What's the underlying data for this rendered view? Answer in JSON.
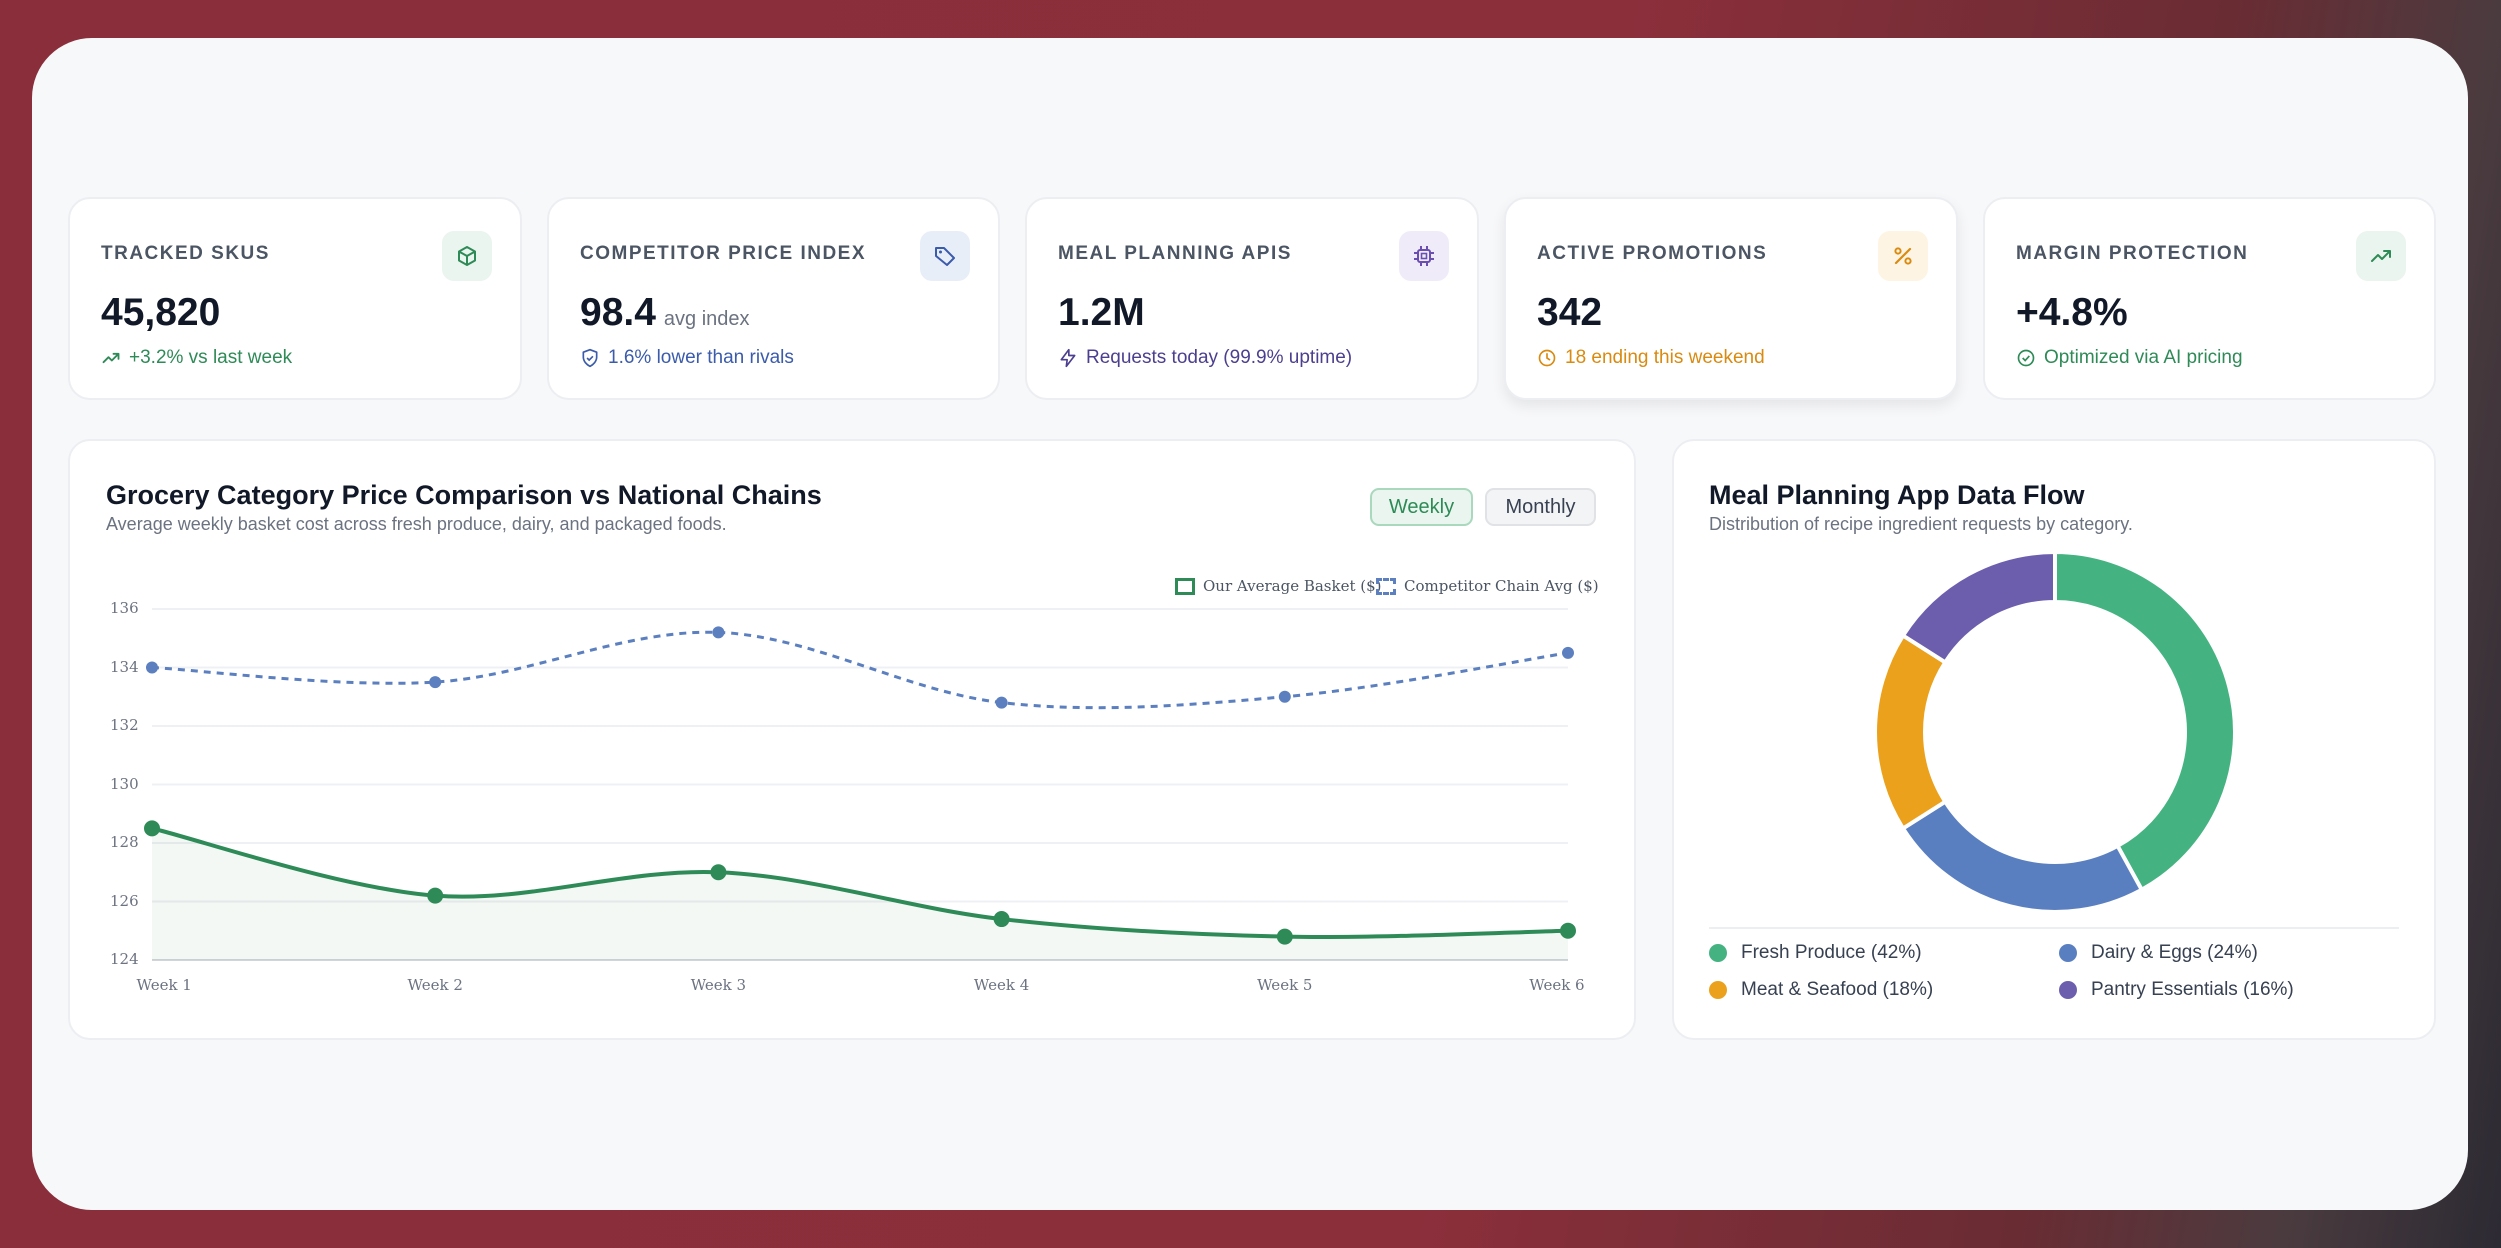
{
  "kpis": [
    {
      "label": "TRACKED SKUS",
      "value": "45,820",
      "suffix": "",
      "sub": "+3.2% vs last week",
      "sub_color": "#2e8b57",
      "icon": "box-icon",
      "badge_bg": "#e9f5ee",
      "icon_color": "#2e8b57"
    },
    {
      "label": "COMPETITOR PRICE INDEX",
      "value": "98.4",
      "suffix": "avg index",
      "sub": "1.6% lower than rivals",
      "sub_color": "#3b5bab",
      "icon": "tag-icon",
      "badge_bg": "#e8eef8",
      "icon_color": "#3b5bab"
    },
    {
      "label": "MEAL PLANNING APIS",
      "value": "1.2M",
      "suffix": "",
      "sub": "Requests today (99.9% uptime)",
      "sub_color": "#4c3f8f",
      "icon": "chip-icon",
      "badge_bg": "#efebf8",
      "icon_color": "#6a4fb0"
    },
    {
      "label": "ACTIVE PROMOTIONS",
      "value": "342",
      "suffix": "",
      "sub": "18 ending this weekend",
      "sub_color": "#d98a10",
      "icon": "percent-icon",
      "badge_bg": "#fdf4e3",
      "icon_color": "#d98a10"
    },
    {
      "label": "MARGIN PROTECTION",
      "value": "+4.8%",
      "suffix": "",
      "sub": "Optimized via AI pricing",
      "sub_color": "#2e8b57",
      "icon": "trending-up-icon",
      "badge_bg": "#e9f5ee",
      "icon_color": "#2e8b57"
    }
  ],
  "line_card": {
    "title": "Grocery Category Price Comparison vs National Chains",
    "subtitle": "Average weekly basket cost across fresh produce, dairy, and packaged foods.",
    "toggle_weekly": "Weekly",
    "toggle_monthly": "Monthly"
  },
  "donut_card": {
    "title": "Meal Planning App Data Flow",
    "subtitle": "Distribution of recipe ingredient requests by category."
  },
  "chart_data": [
    {
      "type": "line",
      "x": [
        "Week 1",
        "Week 2",
        "Week 3",
        "Week 4",
        "Week 5",
        "Week 6"
      ],
      "series": [
        {
          "name": "Our Average Basket ($)",
          "values": [
            128.5,
            126.2,
            127.0,
            125.4,
            124.8,
            125.0
          ],
          "color": "#2e8b57",
          "style": "solid",
          "fill": true
        },
        {
          "name": "Competitor Chain Avg ($)",
          "values": [
            134.0,
            133.5,
            135.2,
            132.8,
            133.0,
            134.5
          ],
          "color": "#5b7fbf",
          "style": "dashed",
          "fill": false
        }
      ],
      "y_ticks": [
        "124",
        "126",
        "128",
        "130",
        "132",
        "134",
        "136"
      ],
      "ylim": [
        124,
        136
      ],
      "grid": true,
      "legend": "top-right"
    },
    {
      "type": "pie",
      "donut": true,
      "categories": [
        "Fresh Produce (42%)",
        "Dairy & Eggs (24%)",
        "Meat & Seafood (18%)",
        "Pantry Essentials (16%)"
      ],
      "values": [
        42,
        24,
        18,
        16
      ],
      "colors": [
        "#45b381",
        "#5a7fc1",
        "#eba11b",
        "#6c5ead"
      ],
      "legend": "bottom"
    }
  ]
}
